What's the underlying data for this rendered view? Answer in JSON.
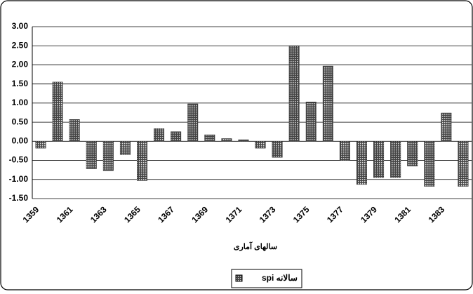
{
  "chart_data": {
    "type": "bar",
    "x_label": "سالهای آماری",
    "categories": [
      "1359",
      null,
      "1361",
      null,
      "1363",
      null,
      "1365",
      null,
      "1367",
      null,
      "1369",
      null,
      "1371",
      null,
      "1373",
      null,
      "1375",
      null,
      "1377",
      null,
      "1379",
      null,
      "1381",
      null,
      "1383",
      null
    ],
    "series": [
      {
        "name": "سالانه spi",
        "color": "#444444",
        "values": [
          -0.18,
          1.55,
          0.57,
          -0.72,
          -0.77,
          -0.35,
          -1.03,
          0.33,
          0.25,
          0.98,
          0.17,
          0.07,
          0.04,
          -0.18,
          -0.42,
          2.5,
          1.03,
          1.97,
          -0.5,
          -1.13,
          -0.95,
          -0.95,
          -0.65,
          -1.18,
          0.74,
          -1.18
        ]
      }
    ],
    "ylim": [
      -1.5,
      3
    ],
    "yticks": [
      {
        "value": -1.5,
        "label": "-1.50"
      },
      {
        "value": -1,
        "label": "-1.00"
      },
      {
        "value": -0.5,
        "label": "-0.50"
      },
      {
        "value": 0,
        "label": "0.00"
      },
      {
        "value": 0.5,
        "label": "0.50"
      },
      {
        "value": 1,
        "label": "1.00"
      },
      {
        "value": 1.5,
        "label": "1.50"
      },
      {
        "value": 2,
        "label": "2.00"
      },
      {
        "value": 2.5,
        "label": "2.50"
      },
      {
        "value": 3,
        "label": "3.00"
      }
    ],
    "grid": true,
    "legend": "bottom"
  }
}
